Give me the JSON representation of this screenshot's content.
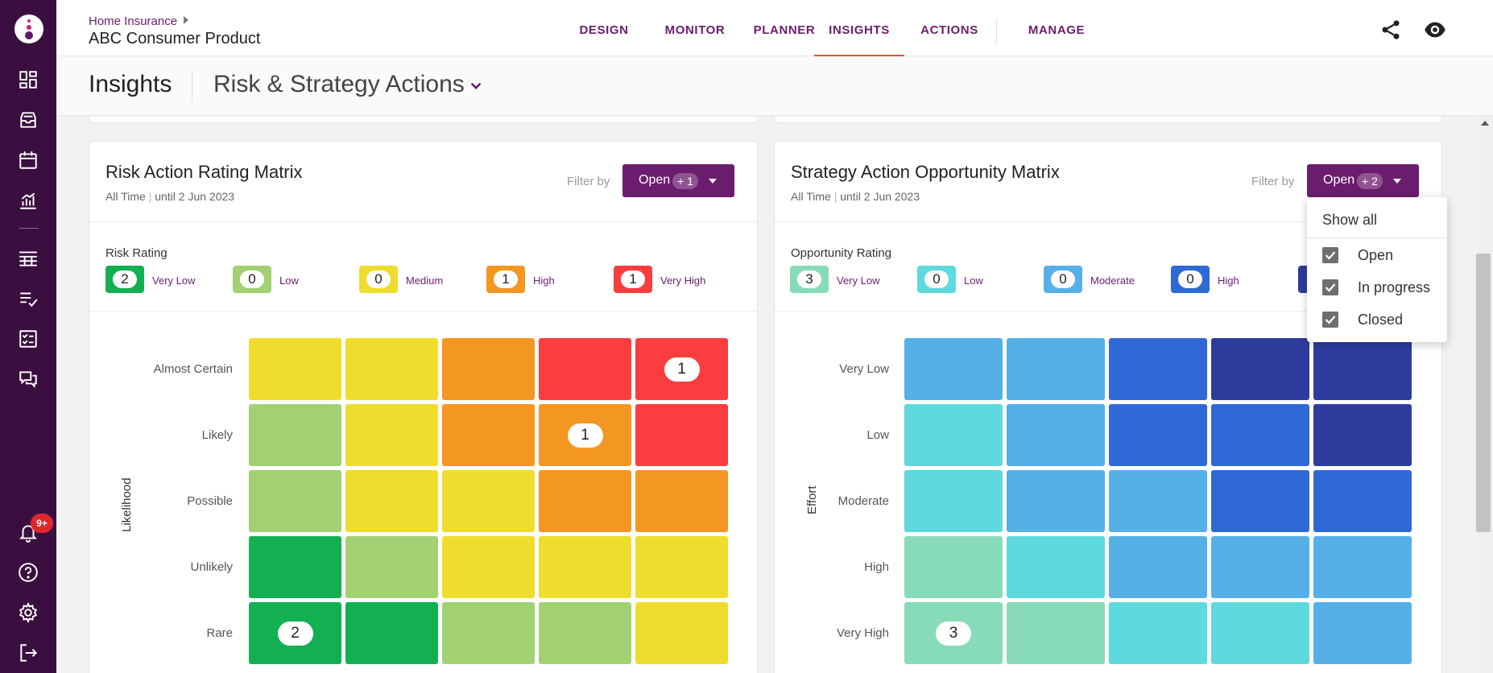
{
  "breadcrumb": {
    "parent": "Home Insurance",
    "current": "ABC Consumer Product"
  },
  "nav_tabs": [
    "DESIGN",
    "MONITOR",
    "PLANNER",
    "INSIGHTS",
    "ACTIONS",
    "MANAGE"
  ],
  "active_tab": "INSIGHTS",
  "sidebar": {
    "icons": [
      "dashboard-icon",
      "inbox-icon",
      "calendar-icon",
      "analytics-icon",
      "table-icon",
      "checklist-icon",
      "task-icon",
      "feedback-icon",
      "notifications-icon",
      "help-icon",
      "settings-icon",
      "logout-icon"
    ],
    "notification_badge": "9+"
  },
  "page": {
    "title": "Insights",
    "view": "Risk & Strategy Actions"
  },
  "risk_panel": {
    "title": "Risk Action Rating Matrix",
    "period": "All Time",
    "until": "until 2 Jun 2023",
    "filter_label": "Filter by",
    "filter_value": "Open",
    "filter_extra": "+ 1",
    "legend_title": "Risk Rating",
    "legend": [
      {
        "count": "2",
        "label": "Very Low",
        "color": "#12b050"
      },
      {
        "count": "0",
        "label": "Low",
        "color": "#a2d173"
      },
      {
        "count": "0",
        "label": "Medium",
        "color": "#efdd2d"
      },
      {
        "count": "1",
        "label": "High",
        "color": "#f49622"
      },
      {
        "count": "1",
        "label": "Very High",
        "color": "#fb3d3f"
      }
    ],
    "y_axis_title": "Likelihood",
    "rows": [
      "Almost Certain",
      "Likely",
      "Possible",
      "Unlikely",
      "Rare"
    ],
    "grid_colors": [
      [
        "#efdd2d",
        "#efdd2d",
        "#f49622",
        "#fb3d3f",
        "#fb3d3f"
      ],
      [
        "#a2d173",
        "#efdd2d",
        "#f49622",
        "#f49622",
        "#fb3d3f"
      ],
      [
        "#a2d173",
        "#efdd2d",
        "#efdd2d",
        "#f49622",
        "#f49622"
      ],
      [
        "#12b050",
        "#a2d173",
        "#efdd2d",
        "#efdd2d",
        "#efdd2d"
      ],
      [
        "#12b050",
        "#12b050",
        "#a2d173",
        "#a2d173",
        "#efdd2d"
      ]
    ],
    "grid_counts": [
      [
        "",
        "",
        "",
        "",
        "1"
      ],
      [
        "",
        "",
        "",
        "1",
        ""
      ],
      [
        "",
        "",
        "",
        "",
        ""
      ],
      [
        "",
        "",
        "",
        "",
        ""
      ],
      [
        "2",
        "",
        "",
        "",
        ""
      ]
    ]
  },
  "strategy_panel": {
    "title": "Strategy Action Opportunity Matrix",
    "period": "All Time",
    "until": "until 2 Jun 2023",
    "filter_label": "Filter by",
    "filter_value": "Open",
    "filter_extra": "+ 2",
    "legend_title": "Opportunity Rating",
    "legend": [
      {
        "count": "3",
        "label": "Very Low",
        "color": "#88dbb9"
      },
      {
        "count": "0",
        "label": "Low",
        "color": "#5ed9dd"
      },
      {
        "count": "0",
        "label": "Moderate",
        "color": "#55b0e8"
      },
      {
        "count": "0",
        "label": "High",
        "color": "#2f69d6"
      },
      {
        "count": "",
        "label": "",
        "color": "#2e3c9e"
      }
    ],
    "y_axis_title": "Effort",
    "rows": [
      "Very Low",
      "Low",
      "Moderate",
      "High",
      "Very High"
    ],
    "grid_colors": [
      [
        "#55b0e8",
        "#55b0e8",
        "#2f69d6",
        "#2e3c9e",
        "#2e3c9e"
      ],
      [
        "#5ed9dd",
        "#55b0e8",
        "#2f69d6",
        "#2f69d6",
        "#2e3c9e"
      ],
      [
        "#5ed9dd",
        "#55b0e8",
        "#55b0e8",
        "#2f69d6",
        "#2f69d6"
      ],
      [
        "#88dbb9",
        "#5ed9dd",
        "#55b0e8",
        "#55b0e8",
        "#55b0e8"
      ],
      [
        "#88dbb9",
        "#88dbb9",
        "#5ed9dd",
        "#5ed9dd",
        "#55b0e8"
      ]
    ],
    "grid_counts": [
      [
        "",
        "",
        "",
        "",
        ""
      ],
      [
        "",
        "",
        "",
        "",
        ""
      ],
      [
        "",
        "",
        "",
        "",
        ""
      ],
      [
        "",
        "",
        "",
        "",
        ""
      ],
      [
        "3",
        "",
        "",
        "",
        ""
      ]
    ]
  },
  "filter_dropdown": {
    "show_all": "Show all",
    "options": [
      {
        "label": "Open",
        "checked": true
      },
      {
        "label": "In progress",
        "checked": true
      },
      {
        "label": "Closed",
        "checked": true
      }
    ]
  }
}
